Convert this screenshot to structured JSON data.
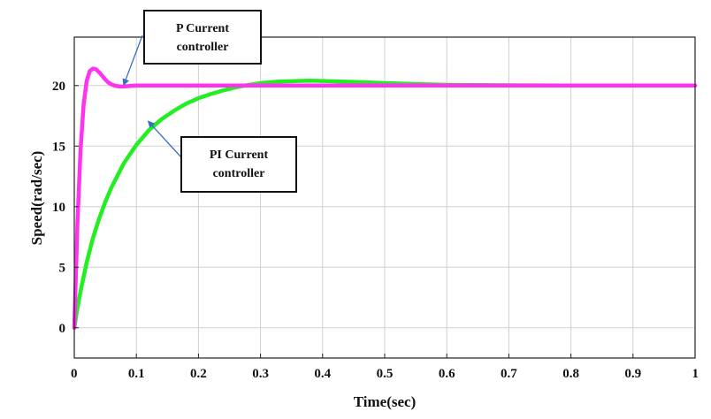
{
  "chart_data": {
    "type": "line",
    "title": "",
    "xlabel": "Time(sec)",
    "ylabel": "Speed(rad/sec)",
    "xlim": [
      0,
      1
    ],
    "ylim": [
      -2.5,
      24
    ],
    "xticks": [
      "0",
      "0.1",
      "0.2",
      "0.3",
      "0.4",
      "0.5",
      "0.6",
      "0.7",
      "0.8",
      "0.9",
      "1"
    ],
    "yticks": [
      "0",
      "5",
      "10",
      "15",
      "20"
    ],
    "grid": true,
    "series": [
      {
        "name": "P Current controller",
        "color": "#ff33ee",
        "x": [
          0,
          0.005,
          0.01,
          0.015,
          0.02,
          0.025,
          0.03,
          0.035,
          0.04,
          0.045,
          0.05,
          0.055,
          0.06,
          0.065,
          0.07,
          0.075,
          0.08,
          0.09,
          0.1,
          0.12,
          0.15,
          0.2,
          0.3,
          0.5,
          0.7,
          1.0
        ],
        "y": [
          0,
          8.5,
          14.6,
          18.4,
          20.4,
          21.2,
          21.4,
          21.35,
          21.1,
          20.8,
          20.5,
          20.25,
          20.1,
          20.0,
          19.95,
          19.92,
          19.93,
          19.97,
          20.0,
          20.0,
          20.0,
          20.0,
          20.0,
          20.0,
          20.0,
          20.0
        ]
      },
      {
        "name": "PI Current controller",
        "color": "#22ee22",
        "x": [
          0,
          0.005,
          0.01,
          0.02,
          0.03,
          0.04,
          0.05,
          0.06,
          0.08,
          0.1,
          0.12,
          0.14,
          0.16,
          0.18,
          0.2,
          0.22,
          0.24,
          0.26,
          0.28,
          0.3,
          0.33,
          0.36,
          0.38,
          0.4,
          0.45,
          0.5,
          0.55,
          0.6,
          0.7,
          0.8,
          1.0
        ],
        "y": [
          0,
          1.6,
          3.0,
          5.4,
          7.4,
          9.0,
          10.4,
          11.6,
          13.6,
          15.1,
          16.3,
          17.2,
          17.9,
          18.5,
          18.95,
          19.3,
          19.6,
          19.85,
          20.05,
          20.2,
          20.33,
          20.38,
          20.4,
          20.38,
          20.3,
          20.2,
          20.12,
          20.06,
          20.02,
          20.0,
          20.0
        ]
      }
    ],
    "annotations": [
      {
        "lines": [
          "P Current",
          "controller"
        ],
        "target": {
          "x": 0.08,
          "y": 20.1
        }
      },
      {
        "lines": [
          "PI Current",
          "controller"
        ],
        "target": {
          "x": 0.12,
          "y": 17.0
        }
      }
    ]
  }
}
